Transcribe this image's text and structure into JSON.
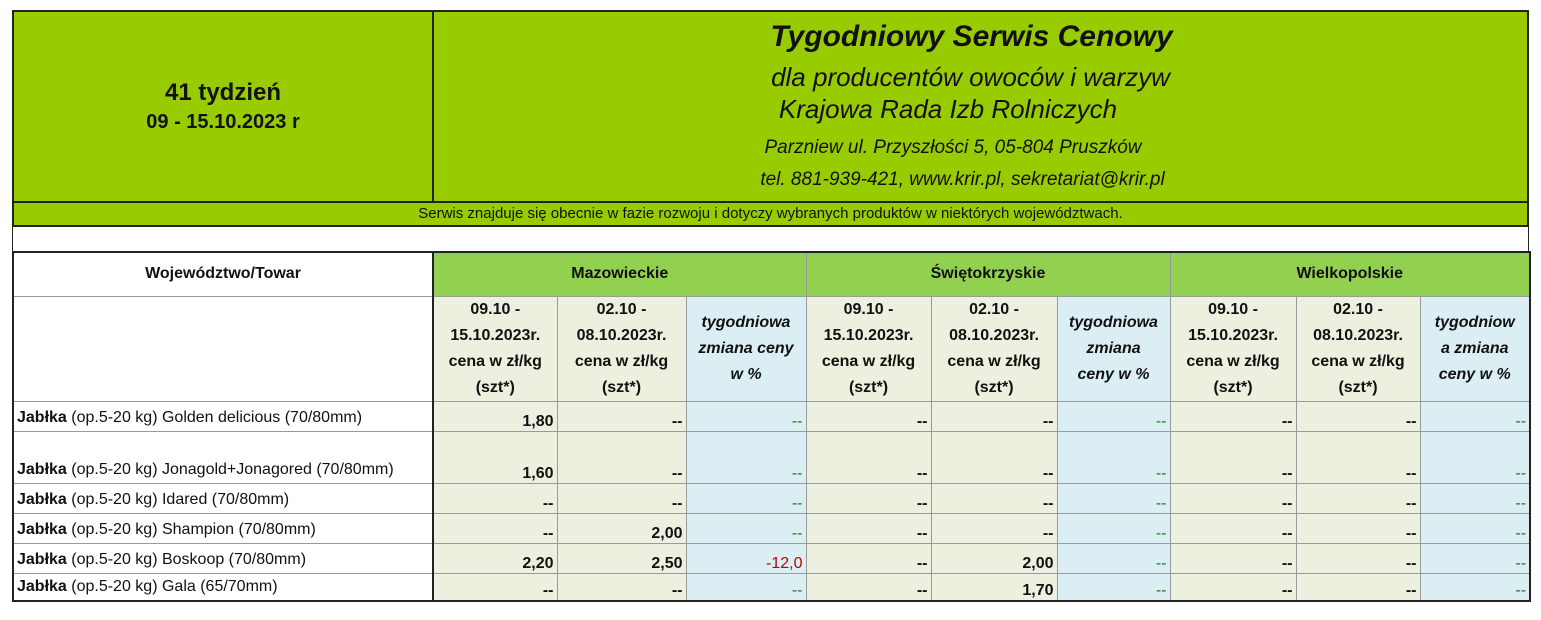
{
  "header": {
    "week": "41 tydzień",
    "dates": "09 - 15.10.2023 r",
    "title": "Tygodniowy Serwis Cenowy",
    "subtitle": "dla producentów owoców i warzyw",
    "organization": "Krajowa Rada Izb Rolniczych",
    "address": "Parzniew ul. Przyszłości 5, 05-804 Pruszków",
    "contact": "tel. 881-939-421, www.krir.pl, sekretariat@krir.pl"
  },
  "note": "Serwis znajduje się obecnie w  fazie rozwoju i dotyczy wybranych produktów w niektórych województwach.",
  "table": {
    "corner_label": "Województwo/Towar",
    "regions": [
      "Mazowieckie",
      "Świętokrzyskie",
      "Wielkopolskie"
    ],
    "subheaders": {
      "current_l1": "09.10 -",
      "current_l2": "15.10.2023r.",
      "current_l3": "cena w zł/kg",
      "current_l4": "(szt*)",
      "previous_l1": "02.10 -",
      "previous_l2": "08.10.2023r.",
      "previous_l3": "cena w zł/kg",
      "previous_l4": "(szt*)",
      "change_maz_l1": "tygodniowa",
      "change_maz_l2": "zmiana ceny",
      "change_maz_l3": "w %",
      "change_swi_l1": "tygodniowa",
      "change_swi_l2": "zmiana",
      "change_swi_l3": "ceny w %",
      "change_wlk_l1": "tygodniow",
      "change_wlk_l2": "a zmiana",
      "change_wlk_l3": "ceny w %"
    },
    "rows": [
      {
        "bold": "Jabłka",
        "rest": " (op.5-20 kg)  Golden delicious  (70/80mm)",
        "values": [
          "1,80",
          "--",
          "--",
          "--",
          "--",
          "--",
          "--",
          "--",
          "--"
        ]
      },
      {
        "bold": "Jabłka",
        "rest": " (op.5-20 kg) Jonagold+Jonagored (70/80mm)",
        "values": [
          "1,60",
          "--",
          "--",
          "--",
          "--",
          "--",
          "--",
          "--",
          "--"
        ]
      },
      {
        "bold": "Jabłka",
        "rest": " (op.5-20 kg)  Idared (70/80mm)",
        "values": [
          "--",
          "--",
          "--",
          "--",
          "--",
          "--",
          "--",
          "--",
          "--"
        ]
      },
      {
        "bold": "Jabłka",
        "rest": " (op.5-20 kg) Shampion (70/80mm)",
        "values": [
          "--",
          "2,00",
          "--",
          "--",
          "--",
          "--",
          "--",
          "--",
          "--"
        ]
      },
      {
        "bold": "Jabłka",
        "rest": " (op.5-20 kg) Boskoop (70/80mm)",
        "values": [
          "2,20",
          "2,50",
          "-12,0",
          "--",
          "2,00",
          "--",
          "--",
          "--",
          "--"
        ]
      },
      {
        "bold": "Jabłka",
        "rest": " (op.5-20 kg) Gala (65/70mm)",
        "values": [
          "--",
          "--",
          "--",
          "--",
          "1,70",
          "--",
          "--",
          "--",
          "--"
        ]
      }
    ]
  }
}
